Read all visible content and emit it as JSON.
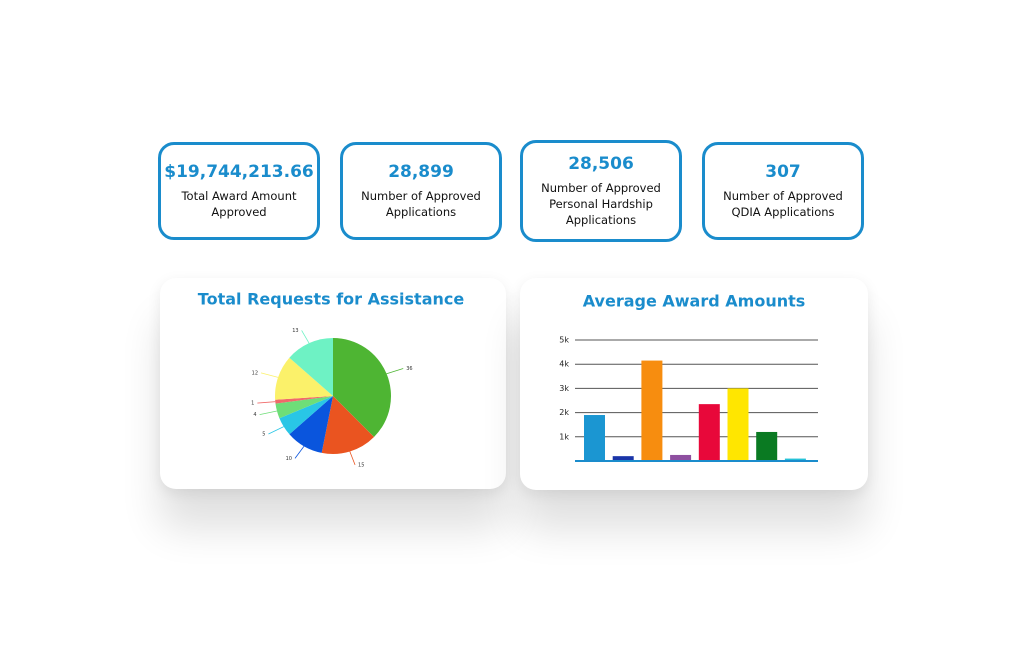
{
  "cards": [
    {
      "value": "$19,744,213.66",
      "label": "Total Award Amount Approved"
    },
    {
      "value": "28,899",
      "label": "Number of Approved Applications"
    },
    {
      "value": "28,506",
      "label": "Number of Approved Personal Hardship Applications"
    },
    {
      "value": "307",
      "label": "Number of Approved QDIA Applications"
    }
  ],
  "chart_data": [
    {
      "type": "pie",
      "title": "Total Requests for Assistance",
      "values": [
        36,
        15,
        10,
        5,
        4,
        1,
        12,
        13
      ],
      "colors": [
        "#4eb533",
        "#ea5420",
        "#0a55dd",
        "#29c6e6",
        "#6ede78",
        "#f06a6a",
        "#fbf16a",
        "#6ef2c4"
      ]
    },
    {
      "type": "bar",
      "title": "Average Award Amounts",
      "values": [
        1900,
        200,
        4150,
        250,
        2350,
        3000,
        1200,
        100
      ],
      "colors": [
        "#1b96d2",
        "#1a35a8",
        "#f78d0f",
        "#8e4fa0",
        "#e8083a",
        "#ffe600",
        "#0a7a22",
        "#25c2d8"
      ],
      "ylim": [
        0,
        5000
      ],
      "yticks": [
        {
          "value": 1000,
          "label": "1k"
        },
        {
          "value": 2000,
          "label": "2k"
        },
        {
          "value": 3000,
          "label": "3k"
        },
        {
          "value": 4000,
          "label": "4k"
        },
        {
          "value": 5000,
          "label": "5k"
        }
      ],
      "grid": true
    }
  ]
}
